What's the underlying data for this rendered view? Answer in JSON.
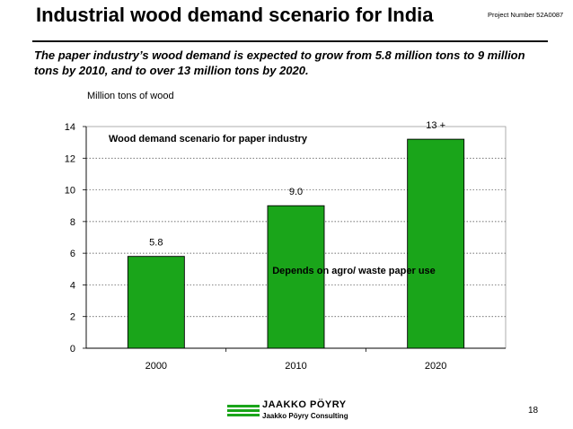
{
  "header": {
    "title": "Industrial wood demand scenario for India",
    "project_number": "Project Number 52A0087"
  },
  "subtitle": "The paper industry’s wood demand is expected to grow from 5.8 million tons to 9 million tons by 2010, and to over 13 million tons by 2020.",
  "footer": {
    "logo_name": "JAAKKO PÖYRY",
    "logo_sub": "Jaakko Pöyry Consulting",
    "page_number": "18"
  },
  "chart_data": {
    "type": "bar",
    "title": "Wood demand scenario for paper industry",
    "ylabel": "Million tons of wood",
    "xlabel": "",
    "categories": [
      "2000",
      "2010",
      "2020"
    ],
    "values": [
      5.8,
      9.0,
      13.2
    ],
    "data_labels": [
      "5.8",
      "9.0",
      "13 +"
    ],
    "ylim": [
      0,
      14
    ],
    "yticks": [
      0,
      2,
      4,
      6,
      8,
      10,
      12,
      14
    ],
    "annotation": "Depends on agro/ waste paper use",
    "bar_color": "#1aa51a",
    "grid": "dotted horizontal",
    "legend": "none"
  }
}
